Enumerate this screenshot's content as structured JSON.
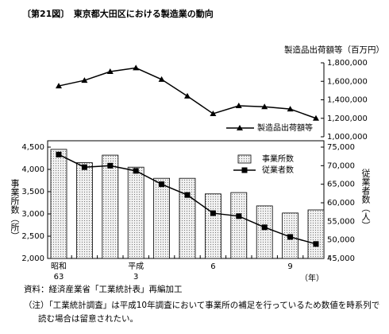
{
  "title": "〔第21図〕　東京都大田区における製造業の動向",
  "source": "資料：経済産業省「工業統計表」再編加工",
  "notes": [
    "（注）「工業統計調査」は平成10年調査において事業所の補足を行っているため数値を時系列で",
    "読む場合は留意されたい。"
  ],
  "chart_data": [
    {
      "type": "line",
      "y_label": "製造品出荷額等（百万円）",
      "categories": [
        null,
        null,
        null,
        null,
        null,
        null,
        null,
        null,
        null,
        null,
        null
      ],
      "series": [
        {
          "name": "製造品出荷額等",
          "color": "#000000",
          "marker": "triangle",
          "values": [
            1550000,
            1610000,
            1705000,
            1745000,
            1620000,
            1440000,
            1250000,
            1335000,
            1325000,
            1300000,
            1200000
          ]
        }
      ],
      "ylim": [
        1000000,
        1800000
      ],
      "yticks": [
        {
          "value": 1000000,
          "label": "1,000,000"
        },
        {
          "value": 1200000,
          "label": "1,200,000"
        },
        {
          "value": 1400000,
          "label": "1,400,000"
        },
        {
          "value": 1600000,
          "label": "1,600,000"
        },
        {
          "value": 1800000,
          "label": "1,800,000"
        }
      ],
      "legend": "lower right"
    },
    {
      "type": "combo",
      "y_label": "事業所数（所）",
      "y2_label": "従業者数（人）",
      "x_label": "（年）",
      "categories": [
        "昭和\n63",
        null,
        null,
        "平成\n3",
        null,
        null,
        "6",
        null,
        null,
        "9",
        null
      ],
      "series": [
        {
          "name": "事業所数",
          "kind": "bar",
          "color": "#d9d9d9",
          "values": [
            4450,
            4150,
            4320,
            4050,
            3800,
            3800,
            3450,
            3480,
            3180,
            3020,
            3090
          ]
        },
        {
          "name": "従業者数",
          "kind": "line",
          "axis": "y2",
          "color": "#000000",
          "marker": "square",
          "values": [
            73000,
            69600,
            70000,
            68600,
            65000,
            62100,
            57200,
            56400,
            53400,
            50800,
            48900
          ]
        }
      ],
      "ylim": [
        2000,
        4500
      ],
      "yticks": [
        {
          "value": 2000,
          "label": "2,000"
        },
        {
          "value": 2500,
          "label": "2,500"
        },
        {
          "value": 3000,
          "label": "3,000"
        },
        {
          "value": 3500,
          "label": "3,500"
        },
        {
          "value": 4000,
          "label": "4,000"
        },
        {
          "value": 4500,
          "label": "4,500"
        }
      ],
      "y2lim": [
        45000,
        75000
      ],
      "y2ticks": [
        {
          "value": 45000,
          "label": "45,000"
        },
        {
          "value": 50000,
          "label": "50,000"
        },
        {
          "value": 55000,
          "label": "55,000"
        },
        {
          "value": 60000,
          "label": "60,000"
        },
        {
          "value": 65000,
          "label": "65,000"
        },
        {
          "value": 70000,
          "label": "70,000"
        },
        {
          "value": 75000,
          "label": "75,000"
        }
      ],
      "legend": "upper right"
    }
  ]
}
